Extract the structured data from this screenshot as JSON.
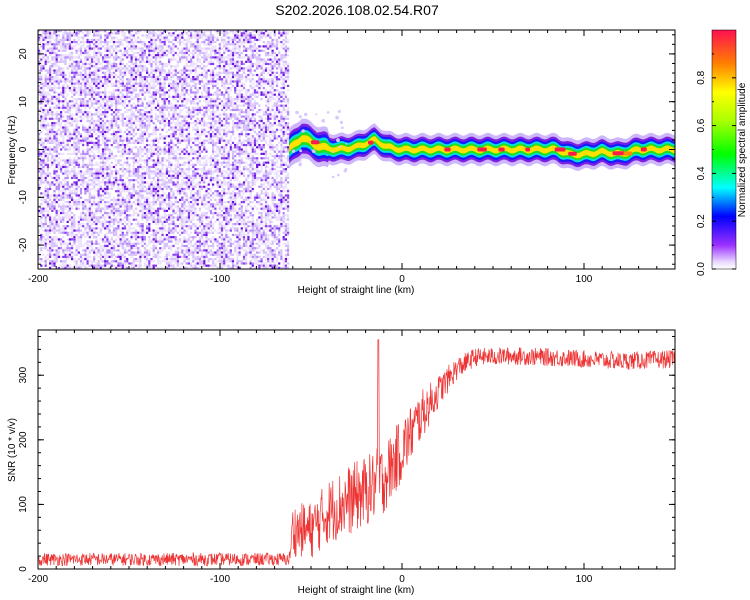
{
  "title": "S202.2026.108.02.54.R07",
  "chart_data": [
    {
      "type": "heatmap",
      "name": "spectrogram",
      "xlabel": "Height of straight line (km)",
      "ylabel": "Frequency (Hz)",
      "xlim": [
        -200,
        150
      ],
      "ylim": [
        -25,
        25
      ],
      "xticks": [
        -200,
        -100,
        0,
        100
      ],
      "xtick_labels": [
        "-200",
        "-100",
        "0",
        "100"
      ],
      "yticks": [
        -20,
        -10,
        0,
        10,
        20
      ],
      "ytick_labels": [
        "-20",
        "-10",
        "0",
        "10",
        "20"
      ],
      "noise_region_x": [
        -200,
        -62
      ],
      "signal_track": {
        "x": [
          -62,
          -55,
          -45,
          -35,
          -25,
          -15,
          -8,
          0,
          10,
          30,
          50,
          70,
          85,
          92,
          100,
          110,
          120,
          130,
          140,
          150
        ],
        "freq": [
          0,
          2.5,
          0.5,
          0,
          0.5,
          2,
          0.5,
          0,
          0,
          0,
          0,
          0,
          0,
          -1,
          -1,
          -0.5,
          -1,
          0,
          0,
          0
        ]
      },
      "colorbar": {
        "label": "Normalized spectral amplitude",
        "range": [
          0,
          1
        ],
        "ticks": [
          0,
          0.2,
          0.4,
          0.6,
          0.8
        ],
        "tick_labels": [
          "0.0",
          "0.2",
          "0.4",
          "0.6",
          "0.8"
        ]
      }
    },
    {
      "type": "line",
      "name": "snr",
      "xlabel": "Height of straight line (km)",
      "ylabel": "SNR (10 * v/v)",
      "xlim": [
        -200,
        150
      ],
      "ylim": [
        0,
        370
      ],
      "xticks": [
        -200,
        -100,
        0,
        100
      ],
      "xtick_labels": [
        "-200",
        "-100",
        "0",
        "100"
      ],
      "yticks": [
        0,
        100,
        200,
        300
      ],
      "ytick_labels": [
        "0",
        "100",
        "200",
        "300"
      ],
      "series_color": "#ee3333",
      "envelope": {
        "x": [
          -200,
          -62,
          -60,
          -50,
          -40,
          -30,
          -20,
          -10,
          0,
          10,
          20,
          30,
          40,
          60,
          80,
          100,
          120,
          150
        ],
        "mean": [
          15,
          15,
          60,
          60,
          90,
          105,
          120,
          140,
          185,
          235,
          275,
          310,
          328,
          330,
          328,
          325,
          322,
          325
        ],
        "spread": [
          10,
          10,
          40,
          45,
          50,
          55,
          55,
          55,
          50,
          40,
          25,
          18,
          14,
          14,
          14,
          14,
          14,
          14
        ]
      },
      "spike": {
        "x": -13,
        "y": 355
      }
    }
  ]
}
